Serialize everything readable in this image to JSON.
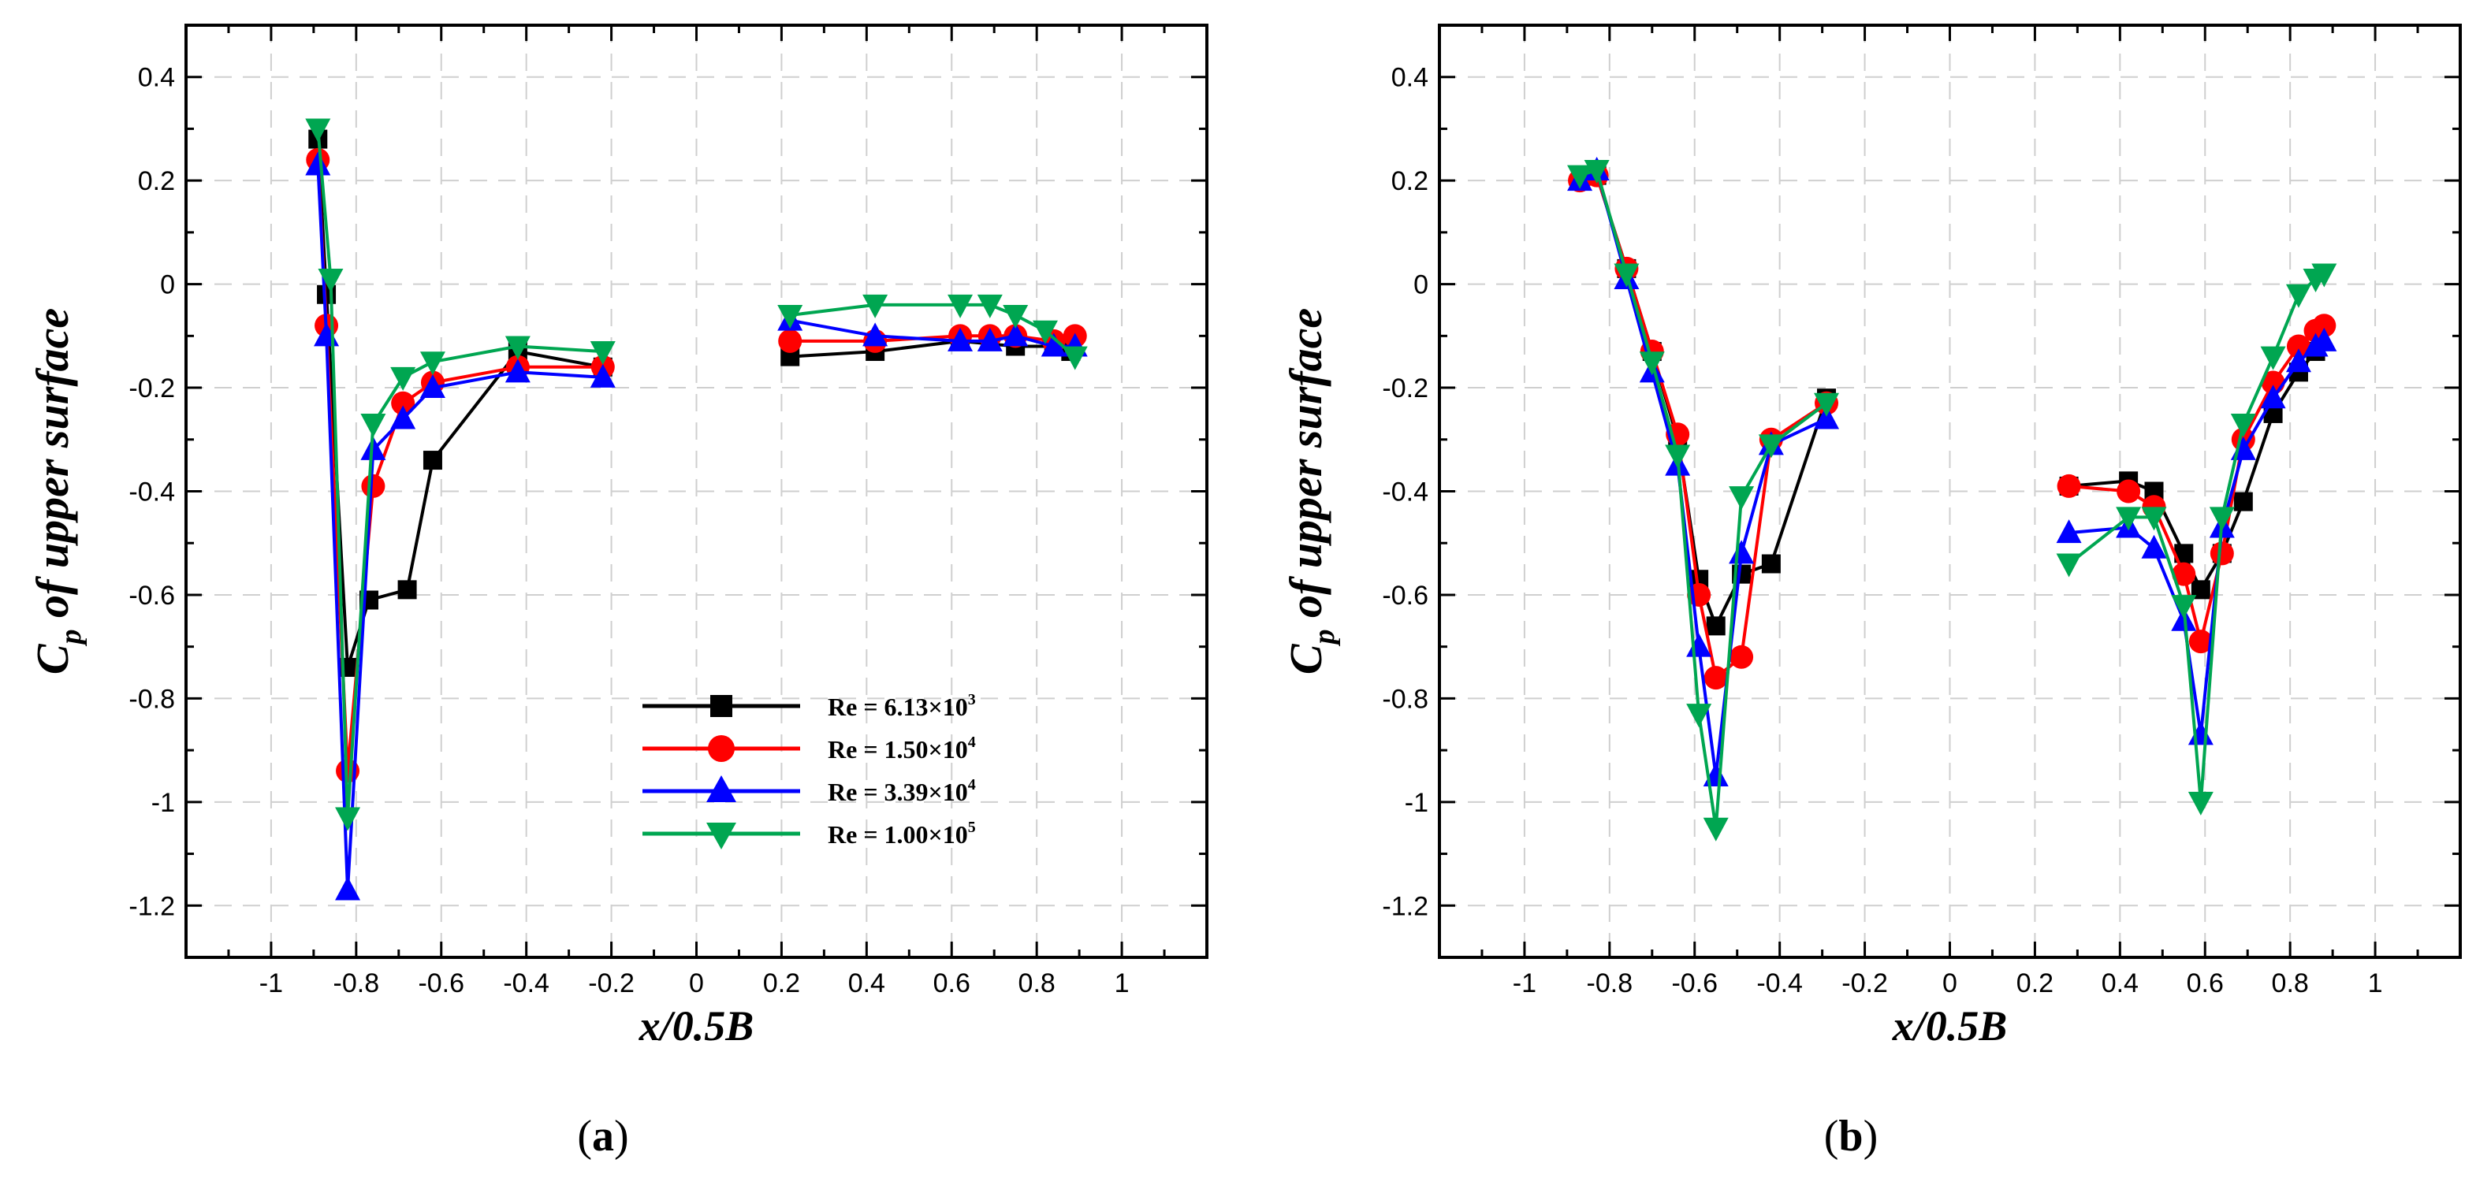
{
  "figure": {
    "panel_labels": [
      {
        "open": "(",
        "letter": "a",
        "close": ")"
      },
      {
        "open": "(",
        "letter": "b",
        "close": ")"
      }
    ]
  },
  "legend": {
    "entries": [
      {
        "prefix": "Re = ",
        "mantissa": "6.13×10",
        "exponent": "3"
      },
      {
        "prefix": "Re = ",
        "mantissa": "1.50×10",
        "exponent": "4"
      },
      {
        "prefix": "Re = ",
        "mantissa": "3.39×10",
        "exponent": "4"
      },
      {
        "prefix": "Re = ",
        "mantissa": "1.00×10",
        "exponent": "5"
      }
    ]
  },
  "chart_data": [
    {
      "type": "line",
      "panel": "a",
      "xlabel": "x/0.5B",
      "ylabel": {
        "main": "C",
        "sub": "p",
        "rest": " of upper surface"
      },
      "xlim": [
        -1.2,
        1.2
      ],
      "ylim": [
        -1.3,
        0.5
      ],
      "xticks": [
        -1,
        -0.8,
        -0.6,
        -0.4,
        -0.2,
        0,
        0.2,
        0.4,
        0.6,
        0.8,
        1
      ],
      "xtick_labels": [
        "-1",
        "-0.8",
        "-0.6",
        "-0.4",
        "-0.2",
        "0",
        "0.2",
        "0.4",
        "0.6",
        "0.8",
        "1"
      ],
      "yticks": [
        -1.2,
        -1,
        -0.8,
        -0.6,
        -0.4,
        -0.2,
        0,
        0.2,
        0.4
      ],
      "ytick_labels": [
        "-1.2",
        "-1",
        "-0.8",
        "-0.6",
        "-0.4",
        "-0.2",
        "0",
        "0.2",
        "0.4"
      ],
      "grid": true,
      "legend_position": "bottom-right",
      "series": [
        {
          "name": "Re = 6.13×10^3",
          "color": "#000000",
          "marker": "square",
          "segments": [
            [
              [
                -0.89,
                0.28
              ],
              [
                -0.87,
                -0.02
              ],
              [
                -0.82,
                -0.74
              ],
              [
                -0.77,
                -0.61
              ],
              [
                -0.68,
                -0.59
              ],
              [
                -0.62,
                -0.34
              ],
              [
                -0.42,
                -0.13
              ],
              [
                -0.22,
                -0.16
              ]
            ],
            [
              [
                0.22,
                -0.14
              ],
              [
                0.42,
                -0.13
              ],
              [
                0.62,
                -0.11
              ],
              [
                0.75,
                -0.12
              ],
              [
                0.84,
                -0.12
              ],
              [
                0.88,
                -0.13
              ]
            ]
          ]
        },
        {
          "name": "Re = 1.50×10^4",
          "color": "#ff0000",
          "marker": "circle",
          "segments": [
            [
              [
                -0.89,
                0.24
              ],
              [
                -0.87,
                -0.08
              ],
              [
                -0.82,
                -0.94
              ],
              [
                -0.76,
                -0.39
              ],
              [
                -0.69,
                -0.23
              ],
              [
                -0.62,
                -0.19
              ],
              [
                -0.42,
                -0.16
              ],
              [
                -0.22,
                -0.16
              ]
            ],
            [
              [
                0.22,
                -0.11
              ],
              [
                0.42,
                -0.11
              ],
              [
                0.62,
                -0.1
              ],
              [
                0.69,
                -0.1
              ],
              [
                0.75,
                -0.1
              ],
              [
                0.84,
                -0.11
              ],
              [
                0.89,
                -0.1
              ]
            ]
          ]
        },
        {
          "name": "Re = 3.39×10^4",
          "color": "#0000ff",
          "marker": "triangle-up",
          "segments": [
            [
              [
                -0.89,
                0.23
              ],
              [
                -0.87,
                -0.1
              ],
              [
                -0.82,
                -1.17
              ],
              [
                -0.76,
                -0.32
              ],
              [
                -0.69,
                -0.26
              ],
              [
                -0.62,
                -0.2
              ],
              [
                -0.42,
                -0.17
              ],
              [
                -0.22,
                -0.18
              ]
            ],
            [
              [
                0.22,
                -0.07
              ],
              [
                0.42,
                -0.1
              ],
              [
                0.62,
                -0.11
              ],
              [
                0.69,
                -0.11
              ],
              [
                0.75,
                -0.1
              ],
              [
                0.84,
                -0.12
              ],
              [
                0.89,
                -0.12
              ]
            ]
          ]
        },
        {
          "name": "Re = 1.00×10^5",
          "color": "#00a651",
          "marker": "triangle-down",
          "segments": [
            [
              [
                -0.89,
                0.3
              ],
              [
                -0.86,
                0.01
              ],
              [
                -0.82,
                -1.03
              ],
              [
                -0.76,
                -0.27
              ],
              [
                -0.69,
                -0.18
              ],
              [
                -0.62,
                -0.15
              ],
              [
                -0.42,
                -0.12
              ],
              [
                -0.22,
                -0.13
              ]
            ],
            [
              [
                0.22,
                -0.06
              ],
              [
                0.42,
                -0.04
              ],
              [
                0.62,
                -0.04
              ],
              [
                0.69,
                -0.04
              ],
              [
                0.75,
                -0.06
              ],
              [
                0.82,
                -0.09
              ],
              [
                0.89,
                -0.14
              ]
            ]
          ]
        }
      ]
    },
    {
      "type": "line",
      "panel": "b",
      "xlabel": "x/0.5B",
      "ylabel": {
        "main": "C",
        "sub": "p",
        "rest": " of upper surface"
      },
      "xlim": [
        -1.2,
        1.2
      ],
      "ylim": [
        -1.3,
        0.5
      ],
      "xticks": [
        -1,
        -0.8,
        -0.6,
        -0.4,
        -0.2,
        0,
        0.2,
        0.4,
        0.6,
        0.8,
        1
      ],
      "xtick_labels": [
        "-1",
        "-0.8",
        "-0.6",
        "-0.4",
        "-0.2",
        "0",
        "0.2",
        "0.4",
        "0.6",
        "0.8",
        "1"
      ],
      "yticks": [
        -1.2,
        -1,
        -0.8,
        -0.6,
        -0.4,
        -0.2,
        0,
        0.2,
        0.4
      ],
      "ytick_labels": [
        "-1.2",
        "-1",
        "-0.8",
        "-0.6",
        "-0.4",
        "-0.2",
        "0",
        "0.2",
        "0.4"
      ],
      "grid": true,
      "series": [
        {
          "name": "Re = 6.13×10^3",
          "color": "#000000",
          "marker": "square",
          "segments": [
            [
              [
                -0.86,
                0.21
              ],
              [
                -0.83,
                0.21
              ],
              [
                -0.76,
                0.03
              ],
              [
                -0.7,
                -0.13
              ],
              [
                -0.64,
                -0.3
              ],
              [
                -0.59,
                -0.57
              ],
              [
                -0.55,
                -0.66
              ],
              [
                -0.49,
                -0.56
              ],
              [
                -0.42,
                -0.54
              ],
              [
                -0.29,
                -0.22
              ]
            ],
            [
              [
                0.28,
                -0.39
              ],
              [
                0.42,
                -0.38
              ],
              [
                0.48,
                -0.4
              ],
              [
                0.55,
                -0.52
              ],
              [
                0.59,
                -0.59
              ],
              [
                0.64,
                -0.52
              ],
              [
                0.69,
                -0.42
              ],
              [
                0.76,
                -0.25
              ],
              [
                0.82,
                -0.17
              ],
              [
                0.86,
                -0.13
              ]
            ]
          ]
        },
        {
          "name": "Re = 1.50×10^4",
          "color": "#ff0000",
          "marker": "circle",
          "segments": [
            [
              [
                -0.87,
                0.2
              ],
              [
                -0.83,
                0.21
              ],
              [
                -0.76,
                0.03
              ],
              [
                -0.7,
                -0.13
              ],
              [
                -0.64,
                -0.29
              ],
              [
                -0.59,
                -0.6
              ],
              [
                -0.55,
                -0.76
              ],
              [
                -0.49,
                -0.72
              ],
              [
                -0.42,
                -0.3
              ],
              [
                -0.29,
                -0.23
              ]
            ],
            [
              [
                0.28,
                -0.39
              ],
              [
                0.42,
                -0.4
              ],
              [
                0.48,
                -0.43
              ],
              [
                0.55,
                -0.56
              ],
              [
                0.59,
                -0.69
              ],
              [
                0.64,
                -0.52
              ],
              [
                0.69,
                -0.3
              ],
              [
                0.76,
                -0.19
              ],
              [
                0.82,
                -0.12
              ],
              [
                0.86,
                -0.09
              ],
              [
                0.88,
                -0.08
              ]
            ]
          ]
        },
        {
          "name": "Re = 3.39×10^4",
          "color": "#0000ff",
          "marker": "triangle-up",
          "segments": [
            [
              [
                -0.87,
                0.2
              ],
              [
                -0.83,
                0.22
              ],
              [
                -0.76,
                0.01
              ],
              [
                -0.7,
                -0.17
              ],
              [
                -0.64,
                -0.35
              ],
              [
                -0.59,
                -0.7
              ],
              [
                -0.55,
                -0.95
              ],
              [
                -0.49,
                -0.52
              ],
              [
                -0.42,
                -0.31
              ],
              [
                -0.29,
                -0.26
              ]
            ],
            [
              [
                0.28,
                -0.48
              ],
              [
                0.42,
                -0.47
              ],
              [
                0.48,
                -0.51
              ],
              [
                0.55,
                -0.65
              ],
              [
                0.59,
                -0.87
              ],
              [
                0.64,
                -0.47
              ],
              [
                0.69,
                -0.32
              ],
              [
                0.76,
                -0.22
              ],
              [
                0.82,
                -0.15
              ],
              [
                0.86,
                -0.12
              ],
              [
                0.88,
                -0.11
              ]
            ]
          ]
        },
        {
          "name": "Re = 1.00×10^5",
          "color": "#00a651",
          "marker": "triangle-down",
          "segments": [
            [
              [
                -0.87,
                0.21
              ],
              [
                -0.83,
                0.22
              ],
              [
                -0.76,
                0.02
              ],
              [
                -0.7,
                -0.15
              ],
              [
                -0.64,
                -0.33
              ],
              [
                -0.59,
                -0.83
              ],
              [
                -0.55,
                -1.05
              ],
              [
                -0.49,
                -0.41
              ],
              [
                -0.42,
                -0.31
              ],
              [
                -0.29,
                -0.23
              ]
            ],
            [
              [
                0.28,
                -0.54
              ],
              [
                0.42,
                -0.45
              ],
              [
                0.48,
                -0.45
              ],
              [
                0.55,
                -0.62
              ],
              [
                0.59,
                -1.0
              ],
              [
                0.64,
                -0.45
              ],
              [
                0.69,
                -0.27
              ],
              [
                0.76,
                -0.14
              ],
              [
                0.82,
                -0.02
              ],
              [
                0.86,
                0.01
              ],
              [
                0.88,
                0.02
              ]
            ]
          ]
        }
      ]
    }
  ]
}
